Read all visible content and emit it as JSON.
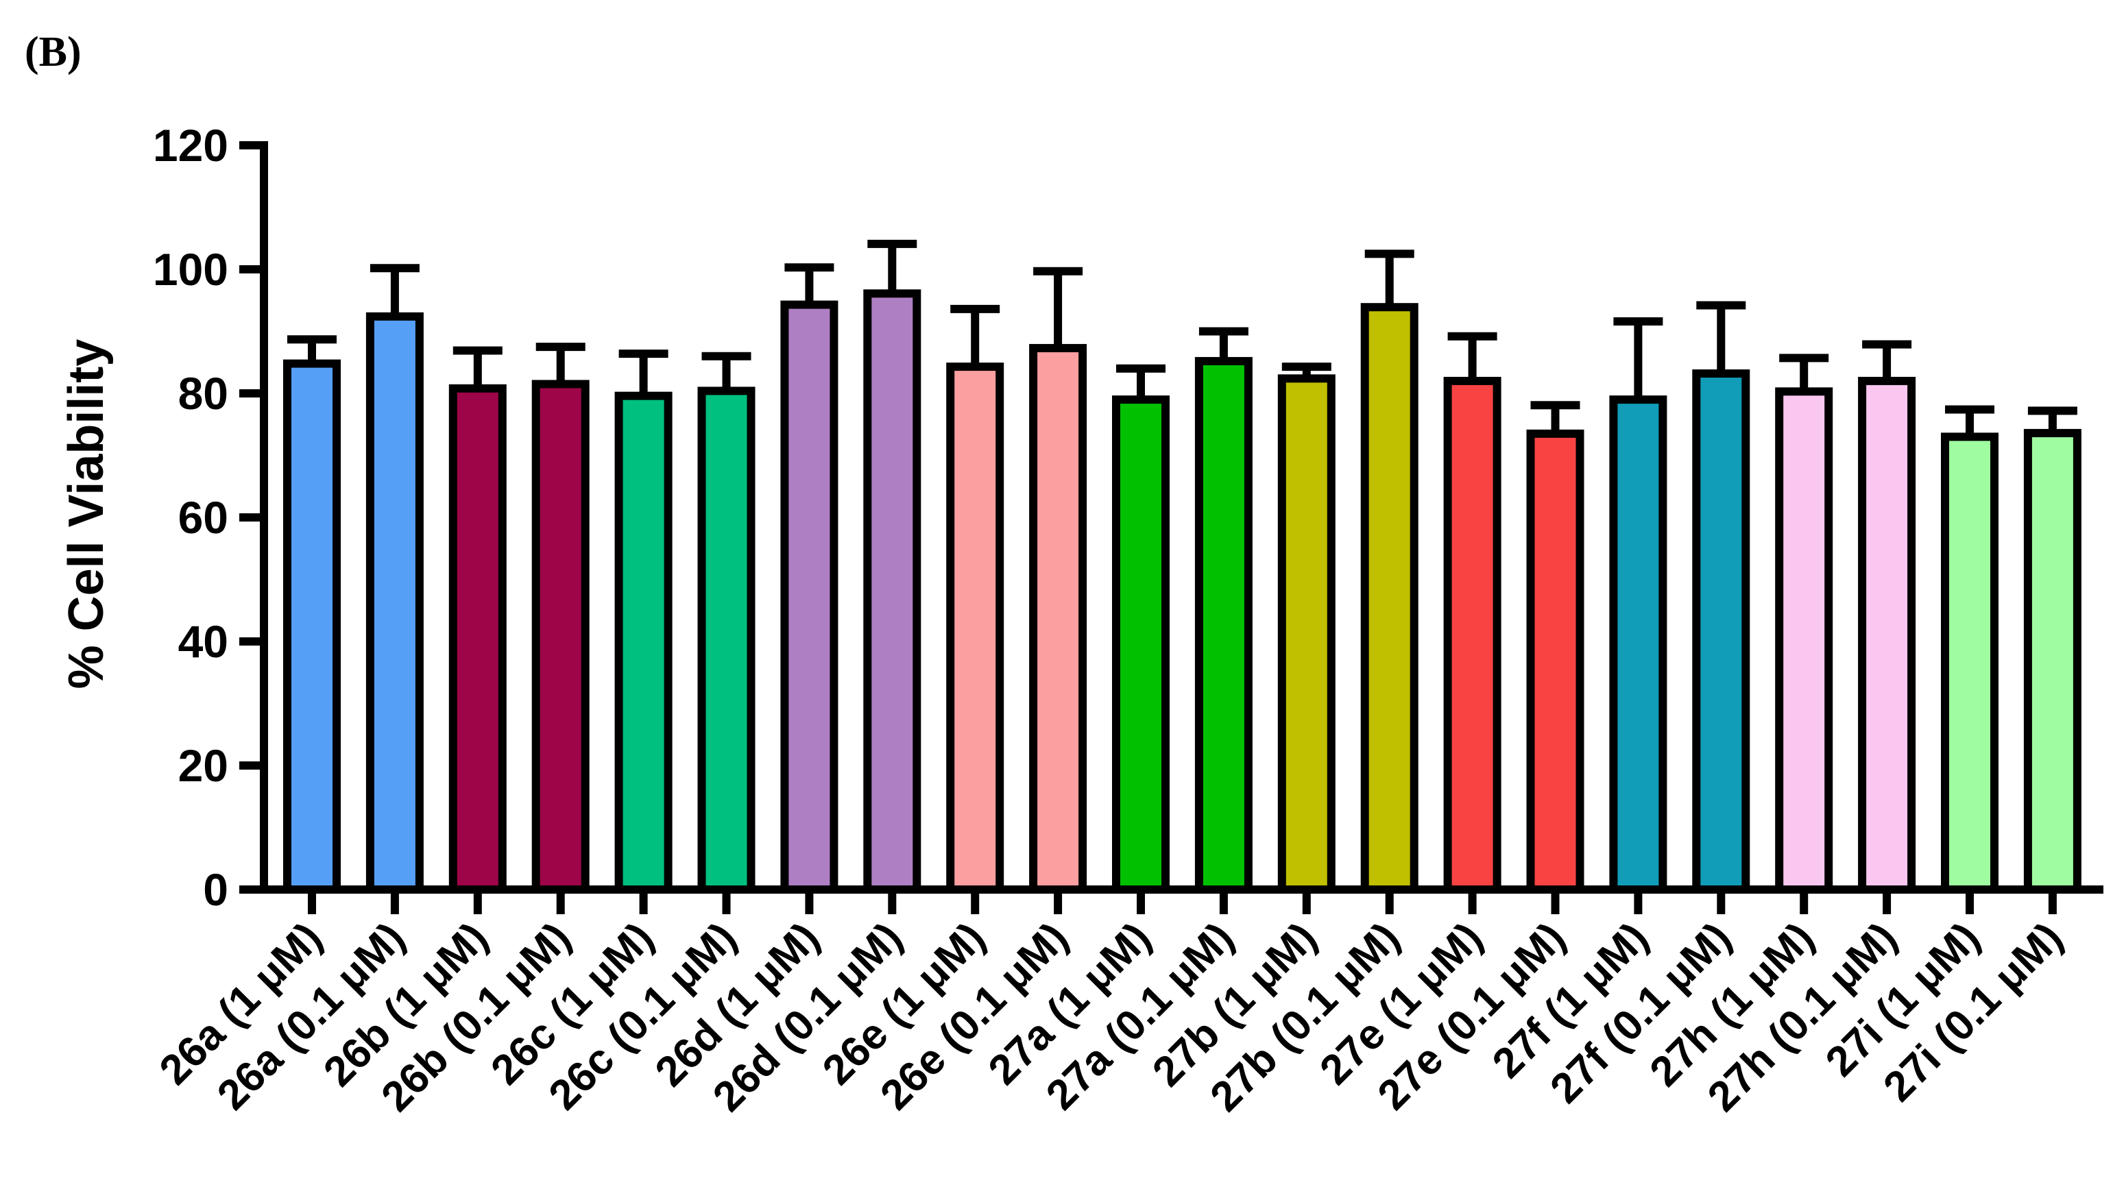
{
  "panel_label": "(B)",
  "chart_data": {
    "type": "bar",
    "title": "",
    "xlabel": "",
    "ylabel": "% Cell Viability",
    "ylim": [
      0,
      120
    ],
    "yticks": [
      0,
      20,
      40,
      60,
      80,
      100,
      120
    ],
    "grid": false,
    "legend": "none",
    "categories": [
      "26a (1 μM)",
      "26a (0.1 μM)",
      "26b (1 μM)",
      "26b (0.1 μM)",
      "26c (1 μM)",
      "26c (0.1 μM)",
      "26d (1 μM)",
      "26d (0.1 μM)",
      "26e (1 μM)",
      "26e (0.1 μM)",
      "27a (1 μM)",
      "27a (0.1 μM)",
      "27b (1 μM)",
      "27b (0.1 μM)",
      "27e (1 μM)",
      "27e (0.1 μM)",
      "27f (1 μM)",
      "27f (0.1 μM)",
      "27h (1 μM)",
      "27h (0.1 μM)",
      "27i (1 μM)",
      "27i (0.1 μM)"
    ],
    "values": [
      84.8,
      92.4,
      80.8,
      81.5,
      79.6,
      80.4,
      94.3,
      96.1,
      84.3,
      87.3,
      79.0,
      85.2,
      82.4,
      93.9,
      82.0,
      73.5,
      79.0,
      83.2,
      80.3,
      82.0,
      73.0,
      73.6
    ],
    "errors": [
      3.9,
      7.8,
      6.1,
      6.0,
      6.8,
      5.6,
      6.0,
      8.0,
      9.3,
      12.4,
      5.0,
      4.8,
      1.9,
      8.6,
      7.2,
      4.6,
      12.6,
      11.0,
      5.4,
      5.9,
      4.4,
      3.6
    ],
    "colors": [
      "#559ff7",
      "#559ff7",
      "#9e0548",
      "#9e0548",
      "#00c080",
      "#00c080",
      "#ae7fc3",
      "#ae7fc3",
      "#fc9fa0",
      "#fc9fa0",
      "#00c000",
      "#00c000",
      "#c0bf00",
      "#c0bf00",
      "#f94343",
      "#f94343",
      "#119cb7",
      "#119cb7",
      "#f9c7f0",
      "#f9c7f0",
      "#a0fca0",
      "#a0fca0"
    ]
  }
}
